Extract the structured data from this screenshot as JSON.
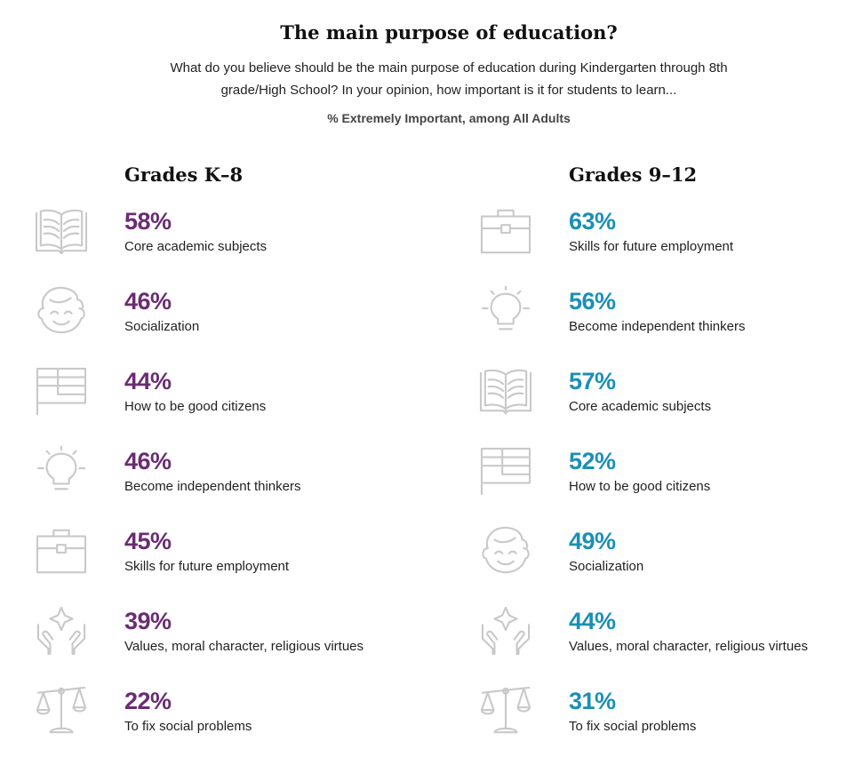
{
  "title": "The main purpose of education?",
  "subtitle": "What do you believe should be the main purpose of education during Kindergarten through 8th grade/High School? In your opinion, how important is it for students to learn...",
  "note": "% Extremely Important, among All Adults",
  "colors": {
    "k8": "#6b2c74",
    "hs": "#1a8fb8",
    "icon": "#c9c9c9"
  },
  "chart_data": {
    "type": "table",
    "title": "The main purpose of education?",
    "measure": "% Extremely Important, among All Adults",
    "groups": [
      {
        "name": "Grades K–8",
        "items": [
          {
            "icon": "book-icon",
            "value": 58,
            "label": "Core academic subjects"
          },
          {
            "icon": "face-icon",
            "value": 46,
            "label": "Socialization"
          },
          {
            "icon": "flag-icon",
            "value": 44,
            "label": "How to be good citizens"
          },
          {
            "icon": "lightbulb-icon",
            "value": 46,
            "label": "Become independent thinkers"
          },
          {
            "icon": "briefcase-icon",
            "value": 45,
            "label": "Skills for future employment"
          },
          {
            "icon": "hands-star-icon",
            "value": 39,
            "label": "Values, moral character, religious virtues"
          },
          {
            "icon": "scales-icon",
            "value": 22,
            "label": "To fix social problems"
          }
        ]
      },
      {
        "name": "Grades 9–12",
        "items": [
          {
            "icon": "briefcase-icon",
            "value": 63,
            "label": "Skills for future employment"
          },
          {
            "icon": "lightbulb-icon",
            "value": 56,
            "label": "Become independent thinkers"
          },
          {
            "icon": "book-icon",
            "value": 57,
            "label": "Core academic subjects"
          },
          {
            "icon": "flag-icon",
            "value": 52,
            "label": "How to be good citizens"
          },
          {
            "icon": "face-icon",
            "value": 49,
            "label": "Socialization"
          },
          {
            "icon": "hands-star-icon",
            "value": 44,
            "label": "Values, moral character, religious virtues"
          },
          {
            "icon": "scales-icon",
            "value": 31,
            "label": "To fix social problems"
          }
        ]
      }
    ]
  }
}
